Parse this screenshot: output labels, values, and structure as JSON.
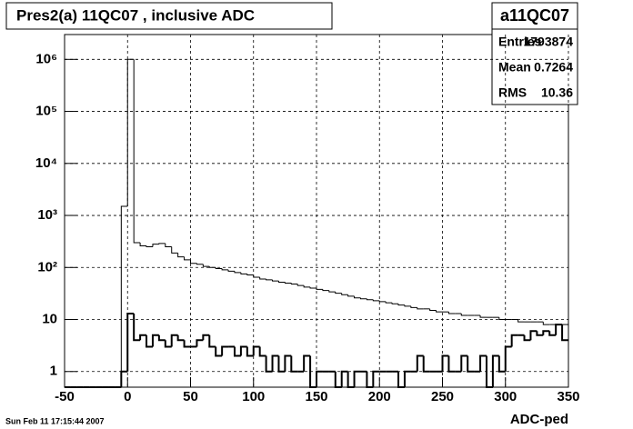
{
  "chart_data": {
    "type": "histogram",
    "title": "Pres2(a) 11QC07 , inclusive ADC",
    "xlabel": "ADC-ped",
    "timestamp": "Sun Feb 11 17:15:44 2007",
    "stats": {
      "title": "a11QC07",
      "rows": [
        {
          "label": "Entries",
          "value": 1793874
        },
        {
          "label": "Mean",
          "value": 0.7264
        },
        {
          "label": "RMS",
          "value": 10.36
        }
      ]
    },
    "log_y": true,
    "grid": true,
    "xlim": [
      -50,
      350
    ],
    "xticks": [
      -50,
      0,
      50,
      100,
      150,
      200,
      250,
      300,
      350
    ],
    "ylim": [
      0.5,
      3000000
    ],
    "yticks": [
      1,
      10,
      {
        "value": 100,
        "label": "10²"
      },
      {
        "value": 1000,
        "label": "10³"
      },
      {
        "value": 10000,
        "label": "10⁴"
      },
      {
        "value": 100000,
        "label": "10⁵"
      },
      {
        "value": 1000000,
        "label": "10⁶"
      }
    ],
    "bins": [
      -50,
      -45,
      -40,
      -35,
      -30,
      -25,
      -20,
      -15,
      -10,
      -5,
      0,
      5,
      10,
      15,
      20,
      25,
      30,
      35,
      40,
      45,
      50,
      55,
      60,
      65,
      70,
      75,
      80,
      85,
      90,
      95,
      100,
      105,
      110,
      115,
      120,
      125,
      130,
      135,
      140,
      145,
      150,
      155,
      160,
      165,
      170,
      175,
      180,
      185,
      190,
      195,
      200,
      205,
      210,
      215,
      220,
      225,
      230,
      235,
      240,
      245,
      250,
      255,
      260,
      265,
      270,
      275,
      280,
      285,
      290,
      295,
      300,
      305,
      310,
      315,
      320,
      325,
      330,
      335,
      340,
      345,
      350
    ],
    "series": [
      {
        "color": "#000000",
        "width": 1,
        "values": [
          0,
          0,
          0,
          0,
          0,
          0,
          0,
          0,
          0,
          1500,
          1000000,
          300,
          260,
          250,
          280,
          290,
          250,
          190,
          160,
          140,
          120,
          115,
          105,
          100,
          95,
          90,
          85,
          80,
          75,
          72,
          65,
          60,
          58,
          55,
          52,
          50,
          48,
          45,
          42,
          40,
          38,
          36,
          34,
          32,
          30,
          28,
          26,
          25,
          24,
          23,
          22,
          21,
          20,
          19,
          18,
          17,
          16,
          16,
          15,
          14,
          14,
          13,
          13,
          12,
          12,
          12,
          11,
          11,
          11,
          10,
          10,
          10,
          9,
          9,
          9,
          9,
          8,
          8,
          8,
          8
        ]
      },
      {
        "color": "#000000",
        "width": 2,
        "values": [
          0,
          0,
          0,
          0,
          0,
          0,
          0,
          0,
          0,
          1,
          13,
          4,
          5,
          3,
          5,
          4,
          3,
          5,
          4,
          3,
          3,
          4,
          5,
          3,
          2,
          3,
          3,
          2,
          3,
          2,
          3,
          2,
          1,
          2,
          1,
          2,
          1,
          1,
          2,
          0,
          1,
          1,
          1,
          0,
          1,
          0,
          1,
          1,
          0,
          1,
          1,
          1,
          1,
          0,
          1,
          1,
          2,
          1,
          1,
          1,
          2,
          1,
          1,
          2,
          1,
          1,
          2,
          0,
          2,
          1,
          3,
          5,
          5,
          4,
          6,
          5,
          6,
          5,
          8,
          4
        ]
      }
    ]
  }
}
